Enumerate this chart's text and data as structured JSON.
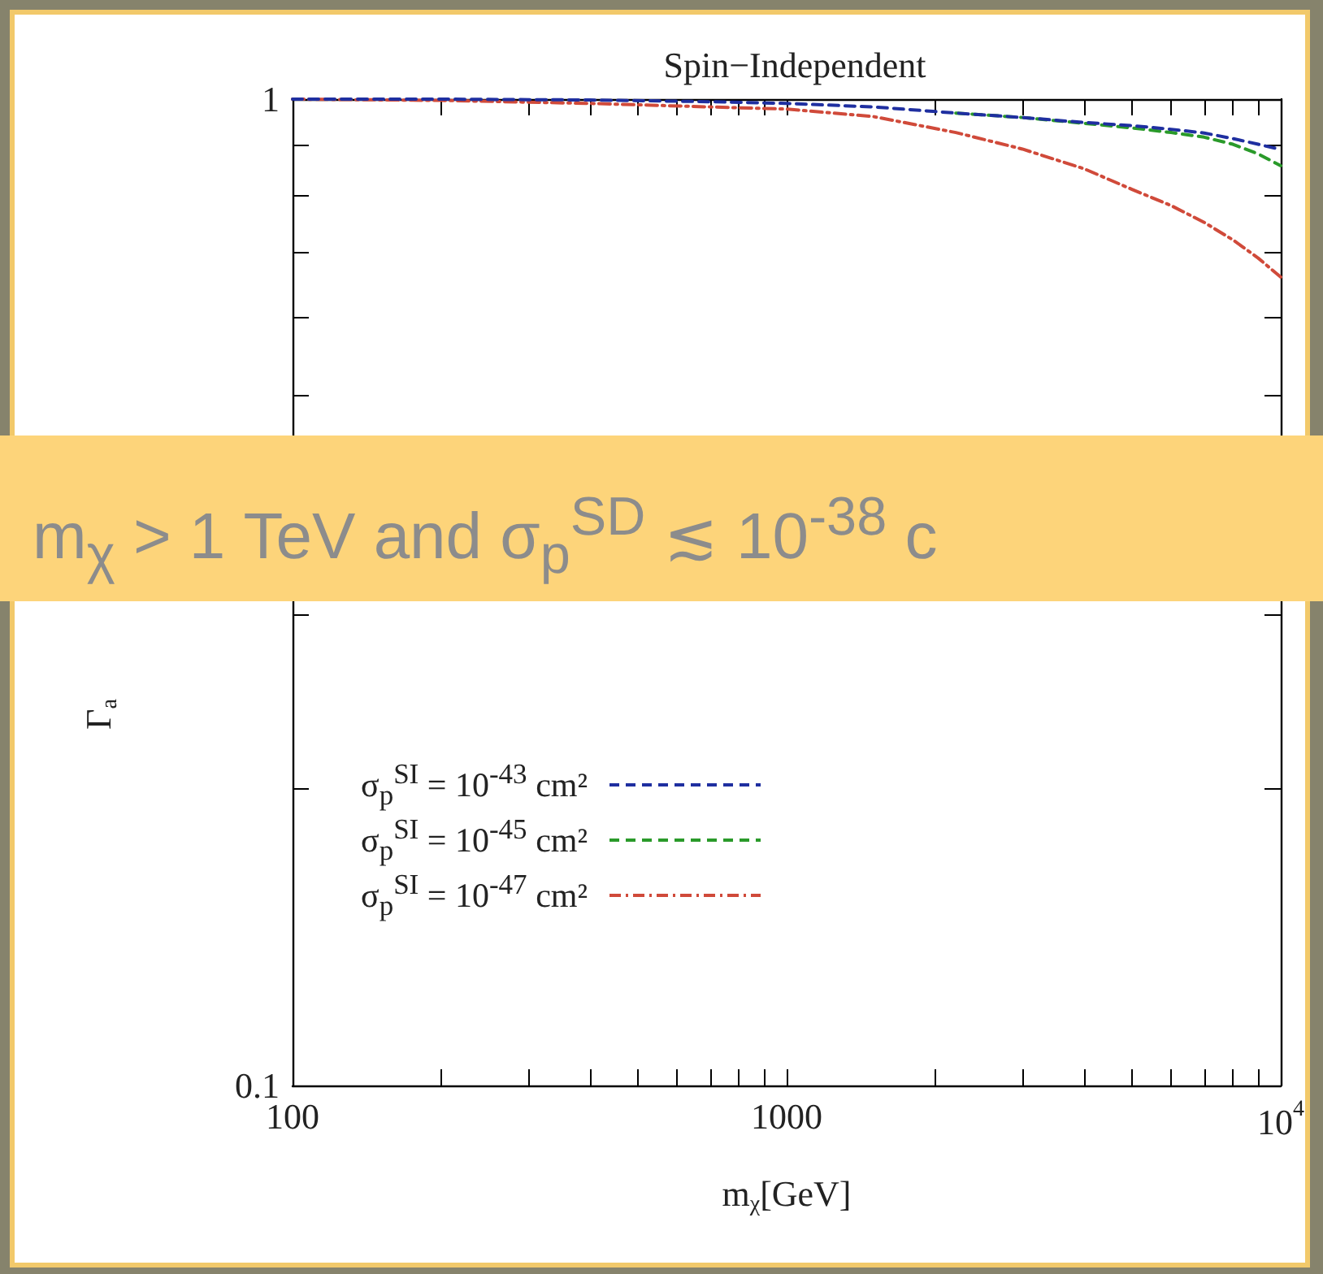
{
  "chart_data": {
    "type": "line",
    "title": "Spin−Independent",
    "xlabel": "m$_{χ}$[GeV]",
    "ylabel": "Γ$_{a}$",
    "annotations": [
      "m$_{χ}$ > 1 TeV and σ$_{p}$$^{SD}$ ≲ 10$^{-38}$ c"
    ],
    "x": [
      100,
      200,
      400,
      700,
      1000,
      1500,
      2200,
      3000,
      4000,
      5000,
      6000,
      7000,
      8000,
      9000,
      10000
    ],
    "series": [
      {
        "name": "σ$_{p}$$^{SI}$ = 10$^{-43}$ cm²",
        "color": "#1f2fa0",
        "line_style": "dashed",
        "values": [
          1,
          1,
          0.998,
          0.994,
          0.99,
          0.982,
          0.968,
          0.958,
          0.947,
          0.94,
          0.932,
          0.924,
          0.912,
          0.9,
          0.889
        ]
      },
      {
        "name": "σ$_{p}$$^{SI}$ = 10$^{-45}$ cm²",
        "color": "#2a9a2a",
        "line_style": "dashed",
        "values": [
          null,
          null,
          null,
          null,
          null,
          null,
          0.968,
          0.958,
          0.945,
          0.935,
          0.925,
          0.915,
          0.9,
          0.88,
          0.856
        ]
      },
      {
        "name": "σ$_{p}$$^{SI}$ = 10$^{-47}$ cm²",
        "color": "#d04a3a",
        "line_style": "dotted",
        "values": [
          1,
          0.997,
          0.99,
          0.982,
          0.977,
          0.96,
          0.925,
          0.89,
          0.85,
          0.81,
          0.78,
          0.75,
          0.72,
          0.69,
          0.66
        ]
      }
    ],
    "log": "xy",
    "xlim": [
      100,
      10000
    ],
    "ylim": [
      0.1,
      1
    ],
    "xticks": [
      100,
      {
        "value": 200,
        "label": null
      },
      {
        "value": 300,
        "label": null
      },
      {
        "value": 400,
        "label": null
      },
      {
        "value": 500,
        "label": null
      },
      {
        "value": 600,
        "label": null
      },
      {
        "value": 700,
        "label": null
      },
      {
        "value": 800,
        "label": null
      },
      {
        "value": 900,
        "label": null
      },
      1000,
      {
        "value": 2000,
        "label": null
      },
      {
        "value": 3000,
        "label": null
      },
      {
        "value": 4000,
        "label": null
      },
      {
        "value": 5000,
        "label": null
      },
      {
        "value": 6000,
        "label": null
      },
      {
        "value": 7000,
        "label": null
      },
      {
        "value": 8000,
        "label": null
      },
      {
        "value": 9000,
        "label": null
      },
      {
        "value": 10000,
        "label": "10$^{4}$"
      }
    ],
    "yticks": [
      0.1,
      {
        "value": 0.2,
        "label": null
      },
      {
        "value": 0.3,
        "label": null
      },
      {
        "value": 0.4,
        "label": null
      },
      {
        "value": 0.5,
        "label": null
      },
      {
        "value": 0.6,
        "label": null
      },
      {
        "value": 0.7,
        "label": null
      },
      {
        "value": 0.8,
        "label": null
      },
      {
        "value": 0.9,
        "label": null
      },
      1
    ],
    "grid": false,
    "legend": "left",
    "marker": "none"
  }
}
